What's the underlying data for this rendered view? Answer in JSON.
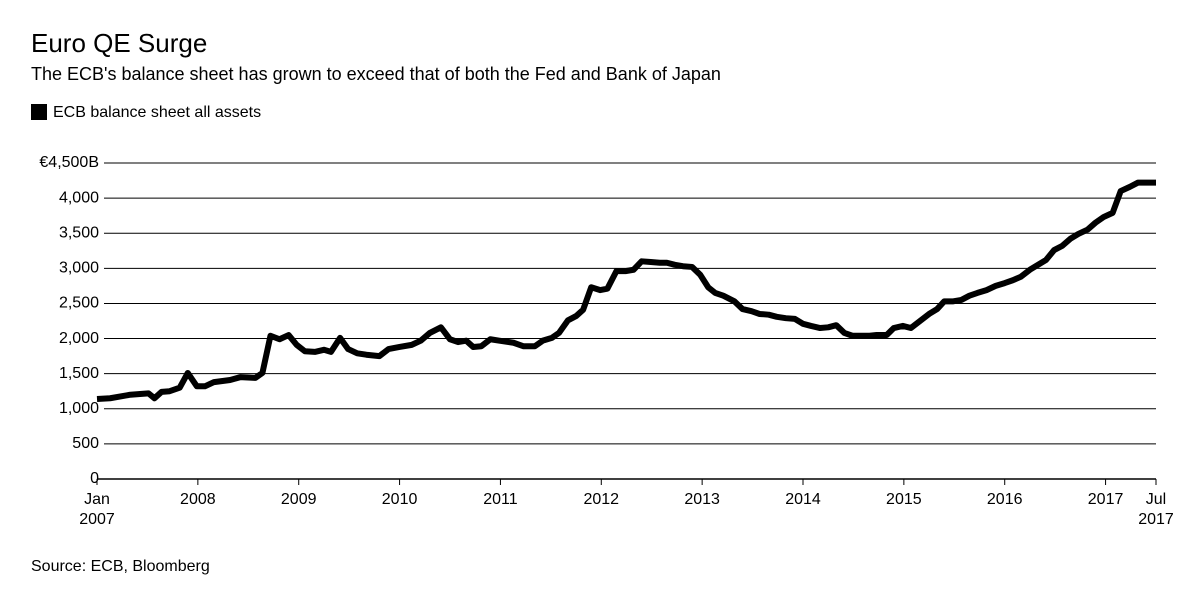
{
  "chart_data": {
    "type": "line",
    "title": "Euro QE Surge",
    "subtitle": "The ECB's balance sheet has grown to exceed that of both the Fed and Bank of Japan",
    "source": "Source: ECB, Bloomberg",
    "x": [
      2007.0,
      2007.13,
      2007.33,
      2007.51,
      2007.57,
      2007.64,
      2007.72,
      2007.82,
      2007.9,
      2007.99,
      2008.07,
      2008.16,
      2008.32,
      2008.42,
      2008.57,
      2008.64,
      2008.72,
      2008.81,
      2008.9,
      2008.98,
      2009.06,
      2009.16,
      2009.25,
      2009.32,
      2009.41,
      2009.49,
      2009.58,
      2009.67,
      2009.8,
      2009.89,
      2010.0,
      2010.12,
      2010.21,
      2010.3,
      2010.41,
      2010.5,
      2010.58,
      2010.66,
      2010.73,
      2010.81,
      2010.9,
      2010.99,
      2011.13,
      2011.23,
      2011.34,
      2011.42,
      2011.51,
      2011.58,
      2011.67,
      2011.75,
      2011.82,
      2011.9,
      2011.99,
      2012.06,
      2012.15,
      2012.24,
      2012.32,
      2012.4,
      2012.49,
      2012.58,
      2012.65,
      2012.73,
      2012.81,
      2012.9,
      2012.98,
      2013.06,
      2013.13,
      2013.21,
      2013.32,
      2013.4,
      2013.49,
      2013.57,
      2013.66,
      2013.74,
      2013.83,
      2013.92,
      2014.0,
      2014.08,
      2014.17,
      2014.25,
      2014.33,
      2014.41,
      2014.49,
      2014.58,
      2014.66,
      2014.73,
      2014.83,
      2014.9,
      2014.99,
      2015.07,
      2015.16,
      2015.25,
      2015.33,
      2015.4,
      2015.49,
      2015.57,
      2015.65,
      2015.73,
      2015.82,
      2015.91,
      2016.0,
      2016.08,
      2016.16,
      2016.25,
      2016.33,
      2016.41,
      2016.49,
      2016.57,
      2016.65,
      2016.73,
      2016.82,
      2016.9,
      2016.98,
      2017.07,
      2017.15,
      2017.24,
      2017.32,
      2017.4,
      2017.5
    ],
    "series": [
      {
        "name": "ECB balance sheet all assets",
        "color": "#000000",
        "values": [
          1140,
          1150,
          1200,
          1220,
          1150,
          1240,
          1250,
          1300,
          1510,
          1320,
          1320,
          1380,
          1410,
          1450,
          1440,
          1510,
          2040,
          1990,
          2050,
          1910,
          1820,
          1810,
          1840,
          1810,
          2010,
          1850,
          1790,
          1770,
          1750,
          1850,
          1880,
          1910,
          1970,
          2080,
          2160,
          1990,
          1950,
          1970,
          1880,
          1890,
          1990,
          1970,
          1940,
          1890,
          1890,
          1970,
          2010,
          2080,
          2260,
          2320,
          2410,
          2730,
          2690,
          2710,
          2960,
          2960,
          2980,
          3100,
          3090,
          3080,
          3080,
          3050,
          3030,
          3020,
          2910,
          2730,
          2650,
          2610,
          2530,
          2420,
          2390,
          2350,
          2340,
          2310,
          2290,
          2280,
          2210,
          2180,
          2150,
          2160,
          2190,
          2080,
          2040,
          2040,
          2040,
          2050,
          2050,
          2150,
          2180,
          2150,
          2250,
          2350,
          2420,
          2530,
          2530,
          2550,
          2610,
          2650,
          2690,
          2750,
          2790,
          2830,
          2880,
          2980,
          3050,
          3120,
          3260,
          3320,
          3420,
          3490,
          3550,
          3650,
          3730,
          3790,
          4100,
          4160,
          4220,
          4220,
          4220
        ]
      }
    ],
    "xlim": [
      2007,
      2017.5
    ],
    "xticks": [
      {
        "value": 2007,
        "label": "Jan\n2007"
      },
      2008,
      2009,
      2010,
      2011,
      2012,
      2013,
      2014,
      2015,
      2016,
      2017,
      {
        "value": 2017.5,
        "label": "Jul\n2017"
      }
    ],
    "ylim": [
      0,
      4500
    ],
    "yticks": [
      0,
      500,
      {
        "value": 1000,
        "label": "1,000"
      },
      {
        "value": 1500,
        "label": "1,500"
      },
      {
        "value": 2000,
        "label": "2,000"
      },
      {
        "value": 2500,
        "label": "2,500"
      },
      {
        "value": 3000,
        "label": "3,000"
      },
      {
        "value": 3500,
        "label": "3,500"
      },
      {
        "value": 4000,
        "label": "4,000"
      },
      {
        "value": 4500,
        "label": "€4,500B"
      }
    ],
    "grid": true
  }
}
